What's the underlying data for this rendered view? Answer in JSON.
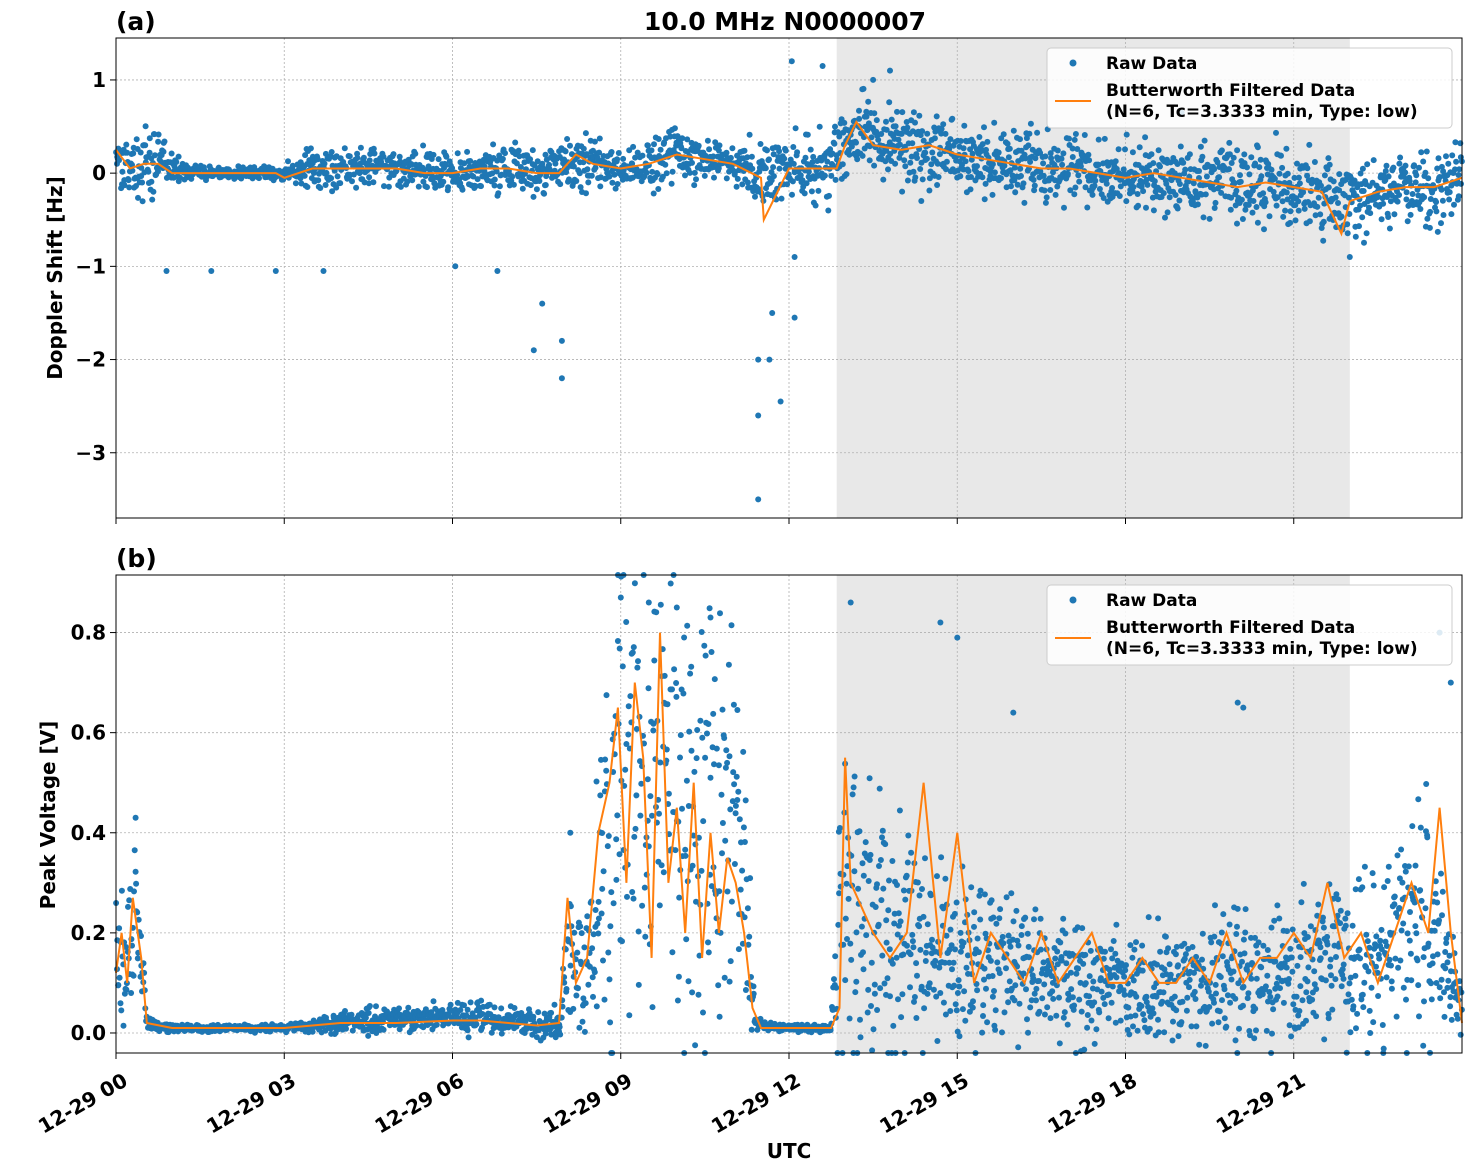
{
  "figure": {
    "title": "10.0 MHz N0000007",
    "xlabel": "UTC",
    "shade_color": "#e8e8e8",
    "raw_color": "#1f77b4",
    "filtered_color": "#ff7f0e",
    "x_ticks": [
      "12-29 00",
      "12-29 03",
      "12-29 06",
      "12-29 09",
      "12-29 12",
      "12-29 15",
      "12-29 18",
      "12-29 21"
    ],
    "legend": {
      "raw": "Raw Data",
      "filtered_line1": "Butterworth Filtered Data",
      "filtered_line2": "(N=6, Tc=3.3333 min, Type: low)"
    }
  },
  "chart_data": [
    {
      "panel_label": "(a)",
      "type": "scatter",
      "ylabel": "Doppler Shift [Hz]",
      "xlim_hours": [
        0,
        24
      ],
      "ylim": [
        -3.7,
        1.45
      ],
      "y_ticks": [
        1,
        0,
        -1,
        -2,
        -3
      ],
      "y_tick_labels": [
        "1",
        "0",
        "−1",
        "−2",
        "−3"
      ],
      "shaded_hours": [
        12.85,
        22.0
      ],
      "grid": true,
      "legend_position": "top-right",
      "series": [
        {
          "name": "Raw Data",
          "kind": "points",
          "x_hours": [
            0.0,
            0.25,
            0.5,
            0.75,
            1.0,
            1.5,
            2.0,
            2.5,
            3.0,
            3.5,
            4.0,
            4.5,
            5.0,
            5.5,
            6.0,
            6.5,
            7.0,
            7.5,
            8.0,
            8.5,
            9.0,
            9.5,
            10.0,
            10.5,
            11.0,
            11.5,
            12.0,
            12.5,
            12.85,
            13.2,
            13.5,
            14.0,
            14.5,
            15.0,
            15.5,
            16.0,
            16.5,
            17.0,
            17.5,
            18.0,
            18.5,
            19.0,
            19.5,
            20.0,
            20.5,
            21.0,
            21.5,
            22.0,
            22.5,
            23.0,
            23.5,
            24.0
          ],
          "y_center": [
            0.2,
            0.1,
            0.05,
            0.15,
            0.05,
            0.0,
            0.0,
            0.0,
            0.0,
            0.05,
            0.05,
            0.05,
            0.05,
            0.05,
            0.0,
            0.05,
            0.05,
            0.0,
            0.1,
            0.1,
            0.05,
            0.1,
            0.2,
            0.15,
            0.1,
            0.0,
            0.05,
            0.05,
            0.1,
            0.5,
            0.35,
            0.25,
            0.25,
            0.2,
            0.15,
            0.1,
            0.05,
            0.05,
            0.0,
            -0.05,
            -0.05,
            -0.05,
            -0.1,
            -0.1,
            -0.15,
            -0.15,
            -0.2,
            -0.3,
            -0.2,
            -0.15,
            -0.15,
            -0.1
          ],
          "y_spread": [
            0.25,
            0.2,
            0.3,
            0.35,
            0.1,
            0.05,
            0.05,
            0.05,
            0.05,
            0.2,
            0.15,
            0.15,
            0.15,
            0.15,
            0.15,
            0.2,
            0.2,
            0.2,
            0.2,
            0.2,
            0.15,
            0.2,
            0.2,
            0.15,
            0.15,
            0.3,
            0.25,
            0.3,
            0.3,
            0.3,
            0.3,
            0.3,
            0.3,
            0.25,
            0.25,
            0.25,
            0.25,
            0.25,
            0.25,
            0.25,
            0.25,
            0.3,
            0.3,
            0.3,
            0.3,
            0.3,
            0.3,
            0.3,
            0.3,
            0.3,
            0.3,
            0.3
          ],
          "outliers": [
            [
              0.9,
              -1.05
            ],
            [
              1.7,
              -1.05
            ],
            [
              2.85,
              -1.05
            ],
            [
              3.7,
              -1.05
            ],
            [
              6.05,
              -1.0
            ],
            [
              6.8,
              -1.05
            ],
            [
              7.45,
              -1.9
            ],
            [
              7.6,
              -1.4
            ],
            [
              7.95,
              -1.8
            ],
            [
              7.95,
              -2.2
            ],
            [
              11.45,
              -2.0
            ],
            [
              11.45,
              -2.6
            ],
            [
              11.45,
              -3.5
            ],
            [
              11.65,
              -2.0
            ],
            [
              11.7,
              -1.5
            ],
            [
              11.85,
              -2.45
            ],
            [
              12.1,
              -1.55
            ],
            [
              12.1,
              -0.9
            ],
            [
              12.05,
              1.2
            ],
            [
              12.6,
              1.15
            ],
            [
              13.5,
              1.0
            ],
            [
              13.8,
              1.1
            ],
            [
              19.0,
              0.65
            ],
            [
              22.0,
              -0.9
            ]
          ]
        },
        {
          "name": "Butterworth Filtered Data (N=6, Tc=3.3333 min, Type: low)",
          "kind": "line",
          "x_hours": [
            0.0,
            0.25,
            0.5,
            0.75,
            1.0,
            1.5,
            2.0,
            2.5,
            2.85,
            3.0,
            3.5,
            4.0,
            4.5,
            5.0,
            5.5,
            6.0,
            6.5,
            7.0,
            7.5,
            7.9,
            8.2,
            8.5,
            9.0,
            9.5,
            10.0,
            10.5,
            11.0,
            11.5,
            11.55,
            12.0,
            12.5,
            12.85,
            13.0,
            13.2,
            13.5,
            14.0,
            14.5,
            15.0,
            15.5,
            16.0,
            16.5,
            17.0,
            17.5,
            18.0,
            18.5,
            19.0,
            19.5,
            20.0,
            20.5,
            21.0,
            21.5,
            21.85,
            22.0,
            22.5,
            23.0,
            23.5,
            24.0
          ],
          "y": [
            0.25,
            0.05,
            0.1,
            0.1,
            0.0,
            0.0,
            0.0,
            0.0,
            0.0,
            -0.05,
            0.05,
            0.05,
            0.05,
            0.05,
            0.0,
            0.0,
            0.05,
            0.05,
            0.0,
            0.0,
            0.2,
            0.1,
            0.05,
            0.1,
            0.2,
            0.15,
            0.1,
            -0.05,
            -0.5,
            0.05,
            0.05,
            0.05,
            0.3,
            0.55,
            0.3,
            0.25,
            0.3,
            0.2,
            0.15,
            0.1,
            0.05,
            0.05,
            0.0,
            -0.05,
            0.0,
            -0.05,
            -0.1,
            -0.15,
            -0.1,
            -0.15,
            -0.2,
            -0.65,
            -0.3,
            -0.2,
            -0.15,
            -0.15,
            -0.05
          ]
        }
      ]
    },
    {
      "panel_label": "(b)",
      "type": "scatter",
      "ylabel": "Peak Voltage [V]",
      "xlim_hours": [
        0,
        24
      ],
      "ylim": [
        -0.04,
        0.915
      ],
      "y_ticks": [
        0.0,
        0.2,
        0.4,
        0.6,
        0.8
      ],
      "y_tick_labels": [
        "0.0",
        "0.2",
        "0.4",
        "0.6",
        "0.8"
      ],
      "shaded_hours": [
        12.85,
        22.0
      ],
      "grid": true,
      "legend_position": "top-right",
      "series": [
        {
          "name": "Raw Data",
          "kind": "points",
          "x_hours": [
            0.0,
            0.15,
            0.3,
            0.45,
            0.55,
            1.0,
            1.5,
            2.0,
            2.5,
            3.0,
            3.5,
            4.0,
            4.5,
            5.0,
            5.5,
            6.0,
            6.5,
            7.0,
            7.5,
            7.9,
            8.05,
            8.3,
            8.6,
            8.8,
            9.0,
            9.3,
            9.6,
            9.9,
            10.2,
            10.5,
            10.8,
            11.1,
            11.25,
            11.4,
            11.8,
            12.2,
            12.6,
            12.75,
            12.9,
            13.1,
            13.5,
            14.0,
            14.5,
            15.0,
            15.5,
            16.0,
            16.5,
            17.0,
            17.5,
            18.0,
            18.5,
            19.0,
            19.5,
            20.0,
            20.5,
            21.0,
            21.5,
            22.0,
            22.5,
            23.0,
            23.3,
            23.7,
            24.0
          ],
          "y_center": [
            0.15,
            0.12,
            0.22,
            0.15,
            0.02,
            0.01,
            0.01,
            0.01,
            0.01,
            0.01,
            0.015,
            0.02,
            0.025,
            0.025,
            0.03,
            0.03,
            0.03,
            0.025,
            0.02,
            0.02,
            0.15,
            0.1,
            0.25,
            0.45,
            0.5,
            0.5,
            0.45,
            0.5,
            0.45,
            0.45,
            0.4,
            0.35,
            0.2,
            0.02,
            0.01,
            0.01,
            0.01,
            0.01,
            0.2,
            0.3,
            0.2,
            0.2,
            0.15,
            0.15,
            0.15,
            0.12,
            0.12,
            0.12,
            0.1,
            0.1,
            0.1,
            0.1,
            0.1,
            0.12,
            0.12,
            0.12,
            0.15,
            0.15,
            0.15,
            0.2,
            0.25,
            0.15,
            0.05
          ],
          "y_spread": [
            0.1,
            0.1,
            0.12,
            0.1,
            0.01,
            0.005,
            0.005,
            0.005,
            0.005,
            0.005,
            0.01,
            0.015,
            0.02,
            0.02,
            0.02,
            0.02,
            0.025,
            0.02,
            0.02,
            0.02,
            0.12,
            0.1,
            0.2,
            0.35,
            0.35,
            0.35,
            0.35,
            0.35,
            0.35,
            0.35,
            0.35,
            0.3,
            0.2,
            0.01,
            0.005,
            0.005,
            0.005,
            0.005,
            0.18,
            0.3,
            0.2,
            0.18,
            0.15,
            0.14,
            0.12,
            0.1,
            0.1,
            0.1,
            0.08,
            0.08,
            0.08,
            0.08,
            0.08,
            0.1,
            0.1,
            0.1,
            0.12,
            0.12,
            0.12,
            0.15,
            0.2,
            0.12,
            0.05
          ],
          "outliers": [
            [
              0.35,
              0.43
            ],
            [
              8.1,
              0.4
            ],
            [
              9.0,
              0.87
            ],
            [
              9.5,
              0.86
            ],
            [
              10.0,
              0.85
            ],
            [
              10.6,
              0.83
            ],
            [
              13.1,
              0.86
            ],
            [
              14.7,
              0.82
            ],
            [
              15.0,
              0.79
            ],
            [
              16.0,
              0.64
            ],
            [
              20.0,
              0.66
            ],
            [
              20.1,
              0.65
            ],
            [
              23.6,
              0.8
            ],
            [
              23.8,
              0.7
            ]
          ]
        },
        {
          "name": "Butterworth Filtered Data (N=6, Tc=3.3333 min, Type: low)",
          "kind": "line",
          "x_hours": [
            0.0,
            0.1,
            0.2,
            0.3,
            0.45,
            0.55,
            1.0,
            2.0,
            3.0,
            3.5,
            4.0,
            5.0,
            6.0,
            6.5,
            7.0,
            7.5,
            7.9,
            8.05,
            8.2,
            8.4,
            8.6,
            8.8,
            8.95,
            9.1,
            9.25,
            9.4,
            9.55,
            9.7,
            9.85,
            10.0,
            10.15,
            10.3,
            10.45,
            10.6,
            10.75,
            10.9,
            11.05,
            11.2,
            11.35,
            11.5,
            12.0,
            12.5,
            12.75,
            12.9,
            13.0,
            13.1,
            13.3,
            13.5,
            13.8,
            14.1,
            14.4,
            14.7,
            15.0,
            15.3,
            15.6,
            15.9,
            16.2,
            16.5,
            16.8,
            17.1,
            17.4,
            17.7,
            18.0,
            18.3,
            18.6,
            18.9,
            19.2,
            19.5,
            19.8,
            20.1,
            20.4,
            20.7,
            21.0,
            21.3,
            21.6,
            21.9,
            22.2,
            22.5,
            22.8,
            23.1,
            23.4,
            23.6,
            23.8,
            24.0
          ],
          "y": [
            0.12,
            0.2,
            0.1,
            0.27,
            0.15,
            0.02,
            0.01,
            0.01,
            0.01,
            0.015,
            0.02,
            0.02,
            0.025,
            0.025,
            0.02,
            0.015,
            0.02,
            0.27,
            0.1,
            0.15,
            0.4,
            0.5,
            0.65,
            0.3,
            0.7,
            0.55,
            0.15,
            0.8,
            0.3,
            0.45,
            0.2,
            0.5,
            0.15,
            0.4,
            0.2,
            0.35,
            0.3,
            0.2,
            0.05,
            0.01,
            0.01,
            0.01,
            0.01,
            0.05,
            0.55,
            0.3,
            0.25,
            0.2,
            0.15,
            0.2,
            0.5,
            0.15,
            0.4,
            0.1,
            0.2,
            0.15,
            0.1,
            0.2,
            0.1,
            0.15,
            0.2,
            0.1,
            0.1,
            0.15,
            0.1,
            0.1,
            0.15,
            0.1,
            0.2,
            0.1,
            0.15,
            0.15,
            0.2,
            0.15,
            0.3,
            0.15,
            0.2,
            0.1,
            0.2,
            0.3,
            0.2,
            0.45,
            0.2,
            0.02
          ]
        }
      ]
    }
  ]
}
